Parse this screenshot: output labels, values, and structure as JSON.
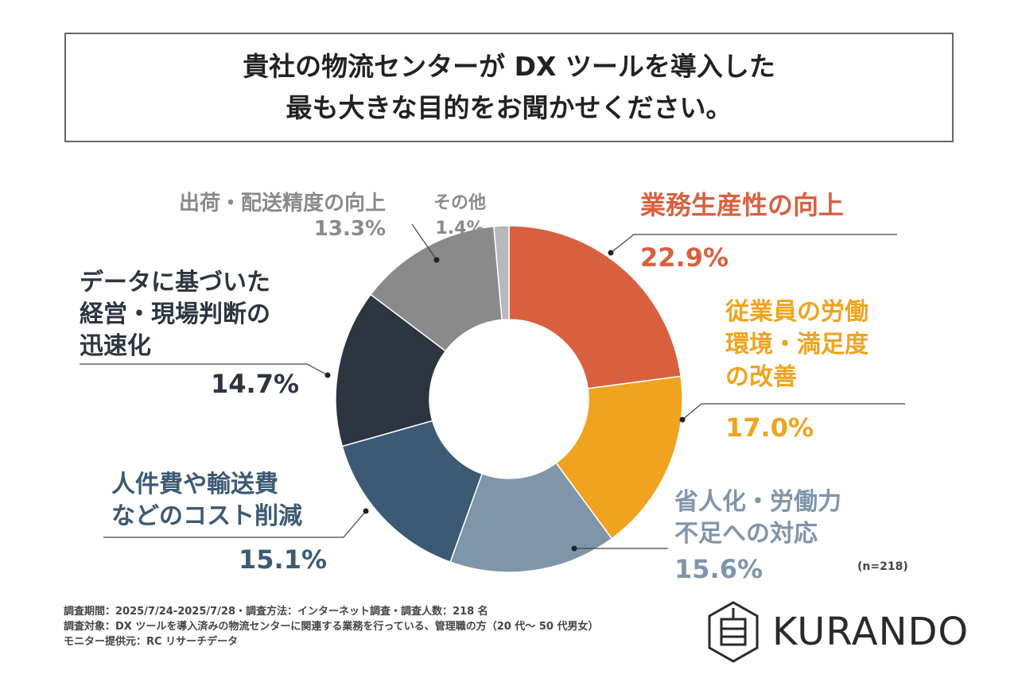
{
  "title": {
    "line1": "貴社の物流センターが DX ツールを導入した",
    "line2": "最も大きな目的をお聞かせください。"
  },
  "chart_data": {
    "type": "pie",
    "style": "donut",
    "title": "貴社の物流センターが DX ツールを導入した最も大きな目的をお聞かせください。",
    "categories": [
      "業務生産性の向上",
      "従業員の労働環境・満足度の改善",
      "省人化・労働力不足への対応",
      "人件費や輸送費などのコスト削減",
      "データに基づいた経営・現場判断の迅速化",
      "出荷・配送精度の向上",
      "その他"
    ],
    "label_lines": [
      [
        "業務生産性の向上"
      ],
      [
        "従業員の労働",
        "環境・満足度",
        "の改善"
      ],
      [
        "省人化・労働力",
        "不足への対応"
      ],
      [
        "人件費や輸送費",
        "などのコスト削減"
      ],
      [
        "データに基づいた",
        "経営・現場判断の",
        "迅速化"
      ],
      [
        "出荷・配送精度の向上"
      ],
      [
        "その他"
      ]
    ],
    "values": [
      22.9,
      17.0,
      15.6,
      15.1,
      14.7,
      13.3,
      1.4
    ],
    "value_labels": [
      "22.9%",
      "17.0%",
      "15.6%",
      "15.1%",
      "14.7%",
      "13.3%",
      "1.4%"
    ],
    "colors": [
      "#d9603f",
      "#f0a31e",
      "#7f95aa",
      "#3d5a74",
      "#2c3540",
      "#8a8a8a",
      "#b8b8b8"
    ],
    "label_colors": [
      "#d9603f",
      "#f0a31e",
      "#7f95aa",
      "#3d5a74",
      "#2c3540",
      "#8a8a8a",
      "#8a8a8a"
    ],
    "sample": "(n=218)"
  },
  "footer": [
    "調査期間：2025/7/24-2025/7/28・調査方法：インターネット調査・調査人数：218 名",
    "調査対象：DX ツールを導入済みの物流センターに関連する業務を行っている、管理職の方（20 代～ 50 代男女）",
    "モニター提供元：RC リサーチデータ"
  ],
  "logo": "KURANDO"
}
